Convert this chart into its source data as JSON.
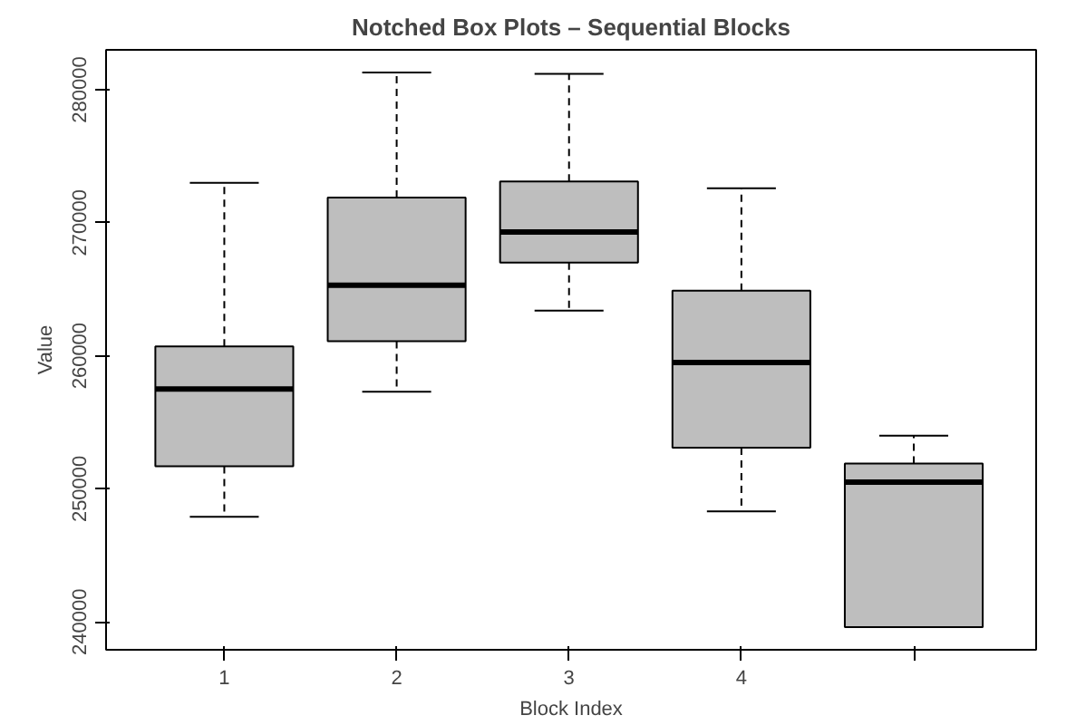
{
  "chart_data": {
    "type": "box",
    "title": "Notched Box Plots – Sequential Blocks",
    "xlabel": "Block Index",
    "ylabel": "Value",
    "categories": [
      "1",
      "2",
      "3",
      "4",
      null
    ],
    "boxes": [
      {
        "low": 247900,
        "q1": 251700,
        "median": 257500,
        "q3": 260700,
        "high": 273000
      },
      {
        "low": 257300,
        "q1": 261100,
        "median": 265300,
        "q3": 271900,
        "high": 281300
      },
      {
        "low": 263400,
        "q1": 267000,
        "median": 269300,
        "q3": 273100,
        "high": 281200
      },
      {
        "low": 248300,
        "q1": 253100,
        "median": 259500,
        "q3": 264900,
        "high": 272600
      },
      {
        "low": 239600,
        "q1": 239600,
        "median": 250500,
        "q3": 251900,
        "high": 254000
      }
    ],
    "color": "#bebebe",
    "ylim": [
      237900,
      283000
    ],
    "yticks": [
      240000,
      250000,
      260000,
      270000,
      280000
    ],
    "grid": false,
    "line_style": "dashed"
  }
}
